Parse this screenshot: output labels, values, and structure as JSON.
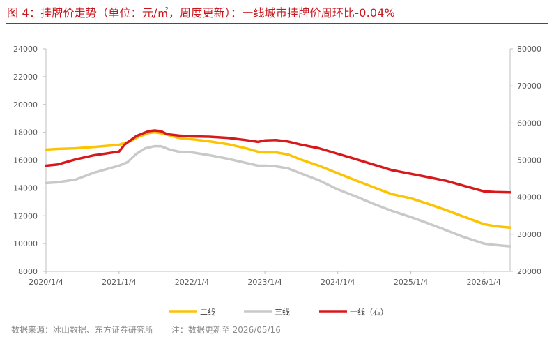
{
  "figure": {
    "title": "图 4：挂牌价走势（单位：元/㎡，周度更新）：一线城市挂牌价周环比-0.04%",
    "source": "数据来源：冰山数据、东方证券研究所",
    "note": "注：数据更新至 2026/05/16"
  },
  "colors": {
    "title": "#c8161d",
    "tier1": "#d7191c",
    "tier2": "#fcc300",
    "tier3": "#c9c9c9"
  },
  "chart_data": {
    "type": "line",
    "title": "",
    "x_tick_labels": [
      "2020/1/4",
      "2021/1/4",
      "2022/1/4",
      "2023/1/4",
      "2024/1/4",
      "2025/1/4",
      "2026/1/4"
    ],
    "x_range": [
      "2020/1/4",
      "2026/5/16"
    ],
    "y_left": {
      "range": [
        8000,
        24000
      ],
      "ticks": [
        8000,
        10000,
        12000,
        14000,
        16000,
        18000,
        20000,
        22000,
        24000
      ]
    },
    "y_right": {
      "range": [
        20000,
        80000
      ],
      "ticks": [
        20000,
        30000,
        40000,
        50000,
        60000,
        70000,
        80000
      ]
    },
    "grid": false,
    "legend_position": "bottom",
    "series": [
      {
        "name": "二线",
        "axis": "left",
        "color": "#fcc300",
        "points": [
          [
            "2020/1/4",
            16750
          ],
          [
            "2020/3/1",
            16800
          ],
          [
            "2020/6/1",
            16850
          ],
          [
            "2020/9/1",
            16950
          ],
          [
            "2021/1/4",
            17100
          ],
          [
            "2021/3/1",
            17350
          ],
          [
            "2021/4/15",
            17700
          ],
          [
            "2021/6/1",
            17950
          ],
          [
            "2021/7/1",
            18000
          ],
          [
            "2021/8/15",
            17900
          ],
          [
            "2021/10/1",
            17700
          ],
          [
            "2021/11/15",
            17550
          ],
          [
            "2022/1/4",
            17500
          ],
          [
            "2022/4/1",
            17350
          ],
          [
            "2022/7/1",
            17150
          ],
          [
            "2022/10/1",
            16850
          ],
          [
            "2022/12/1",
            16600
          ],
          [
            "2023/1/4",
            16550
          ],
          [
            "2023/3/1",
            16550
          ],
          [
            "2023/5/1",
            16400
          ],
          [
            "2023/7/1",
            16050
          ],
          [
            "2023/10/1",
            15600
          ],
          [
            "2024/1/4",
            15050
          ],
          [
            "2024/4/1",
            14550
          ],
          [
            "2024/7/1",
            14050
          ],
          [
            "2024/10/1",
            13550
          ],
          [
            "2025/1/4",
            13250
          ],
          [
            "2025/4/1",
            12850
          ],
          [
            "2025/7/1",
            12400
          ],
          [
            "2025/10/1",
            11900
          ],
          [
            "2026/1/4",
            11400
          ],
          [
            "2026/3/1",
            11250
          ],
          [
            "2026/5/16",
            11150
          ]
        ]
      },
      {
        "name": "三线",
        "axis": "left",
        "color": "#c9c9c9",
        "points": [
          [
            "2020/1/4",
            14350
          ],
          [
            "2020/3/1",
            14400
          ],
          [
            "2020/6/1",
            14600
          ],
          [
            "2020/9/1",
            15100
          ],
          [
            "2021/1/4",
            15600
          ],
          [
            "2021/2/15",
            15850
          ],
          [
            "2021/4/1",
            16450
          ],
          [
            "2021/5/15",
            16850
          ],
          [
            "2021/7/1",
            17000
          ],
          [
            "2021/8/1",
            17000
          ],
          [
            "2021/9/15",
            16750
          ],
          [
            "2021/11/1",
            16600
          ],
          [
            "2022/1/4",
            16550
          ],
          [
            "2022/4/1",
            16350
          ],
          [
            "2022/7/1",
            16100
          ],
          [
            "2022/10/1",
            15800
          ],
          [
            "2022/12/1",
            15600
          ],
          [
            "2023/1/4",
            15600
          ],
          [
            "2023/3/1",
            15550
          ],
          [
            "2023/5/1",
            15400
          ],
          [
            "2023/7/1",
            15050
          ],
          [
            "2023/10/1",
            14550
          ],
          [
            "2024/1/4",
            13900
          ],
          [
            "2024/4/1",
            13400
          ],
          [
            "2024/7/1",
            12850
          ],
          [
            "2024/10/1",
            12350
          ],
          [
            "2025/1/4",
            11900
          ],
          [
            "2025/4/1",
            11450
          ],
          [
            "2025/7/1",
            10950
          ],
          [
            "2025/10/1",
            10450
          ],
          [
            "2026/1/4",
            10000
          ],
          [
            "2026/3/1",
            9900
          ],
          [
            "2026/5/16",
            9800
          ]
        ]
      },
      {
        "name": "一线（右）",
        "axis": "right",
        "color": "#d7191c",
        "points": [
          [
            "2020/1/4",
            48500
          ],
          [
            "2020/3/1",
            48800
          ],
          [
            "2020/6/1",
            50200
          ],
          [
            "2020/9/1",
            51300
          ],
          [
            "2021/1/4",
            52300
          ],
          [
            "2021/2/1",
            54200
          ],
          [
            "2021/4/1",
            56500
          ],
          [
            "2021/6/1",
            57800
          ],
          [
            "2021/7/1",
            58000
          ],
          [
            "2021/8/1",
            57800
          ],
          [
            "2021/9/1",
            57000
          ],
          [
            "2021/11/1",
            56600
          ],
          [
            "2022/1/4",
            56400
          ],
          [
            "2022/4/1",
            56300
          ],
          [
            "2022/7/1",
            56000
          ],
          [
            "2022/10/1",
            55400
          ],
          [
            "2022/12/1",
            54900
          ],
          [
            "2023/1/4",
            55300
          ],
          [
            "2023/3/1",
            55400
          ],
          [
            "2023/5/1",
            55000
          ],
          [
            "2023/7/1",
            54200
          ],
          [
            "2023/10/1",
            53200
          ],
          [
            "2024/1/4",
            51700
          ],
          [
            "2024/4/1",
            50300
          ],
          [
            "2024/7/1",
            48800
          ],
          [
            "2024/10/1",
            47300
          ],
          [
            "2025/1/4",
            46300
          ],
          [
            "2025/4/1",
            45400
          ],
          [
            "2025/7/1",
            44400
          ],
          [
            "2025/10/1",
            43000
          ],
          [
            "2026/1/4",
            41600
          ],
          [
            "2026/3/1",
            41400
          ],
          [
            "2026/5/16",
            41300
          ]
        ]
      }
    ]
  }
}
